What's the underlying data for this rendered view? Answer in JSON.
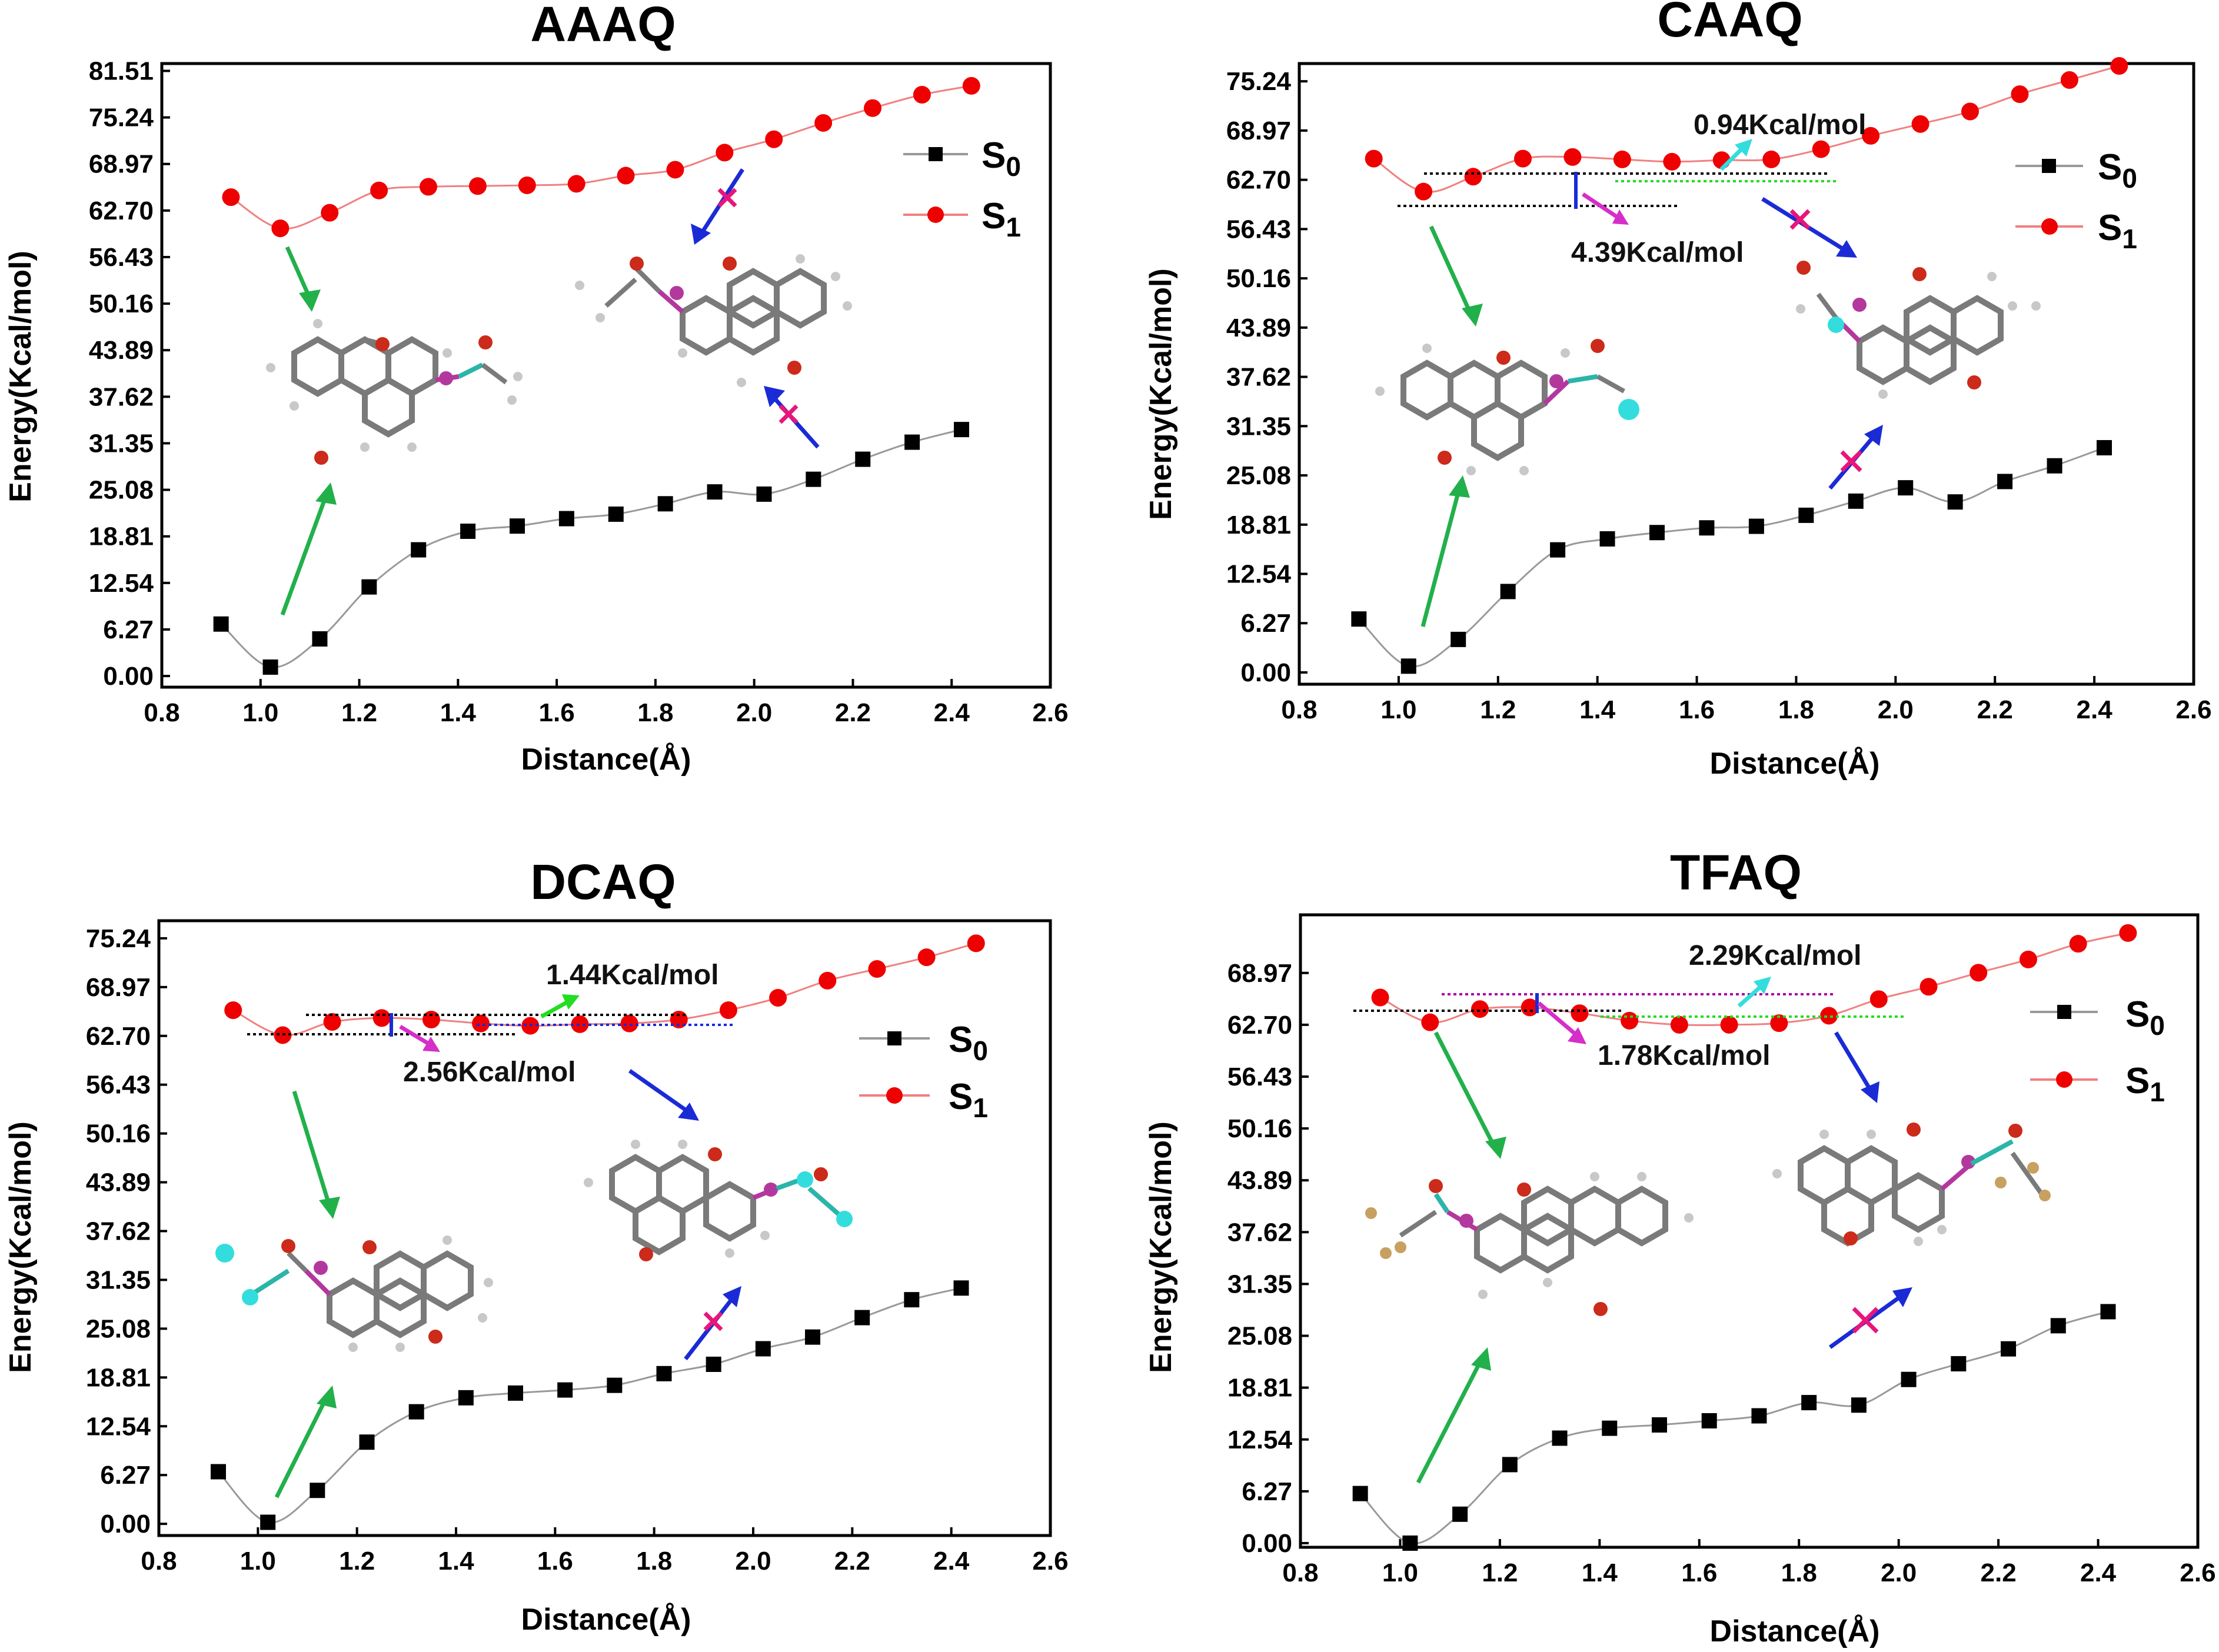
{
  "colors": {
    "s0": "#000000",
    "s1": "#ee0000",
    "s1_line": "#f08080",
    "s0_line": "#999999",
    "green": "#22b04b",
    "blue": "#1a2bd6",
    "magenta": "#d62ec8",
    "cyan": "#33dddd",
    "cross": "#e8157a",
    "atom_c": "#7a7a7a",
    "atom_h": "#c8c8c8",
    "atom_o": "#cc2a1a",
    "atom_s": "#b3389e",
    "atom_n": "#2bb5a8",
    "atom_f": "#c8a060"
  },
  "chart_data": [
    {
      "type": "line",
      "title": "AAAQ",
      "xlabel": "Distance(Å)",
      "ylabel": "Energy(Kcal/mol)",
      "xlim": [
        0.8,
        2.6
      ],
      "ylim": [
        -1.5,
        82.5
      ],
      "xticks": [
        "0.8",
        "1.0",
        "1.2",
        "1.4",
        "1.6",
        "1.8",
        "2.0",
        "2.2",
        "2.4",
        "2.6"
      ],
      "yticks": [
        "0.00",
        "6.27",
        "12.54",
        "18.81",
        "25.08",
        "31.35",
        "37.62",
        "43.89",
        "50.16",
        "56.43",
        "62.70",
        "68.97",
        "75.24",
        "81.51"
      ],
      "legend": [
        "S0",
        "S1"
      ],
      "series": [
        {
          "name": "S0",
          "x": [
            0.92,
            1.02,
            1.12,
            1.22,
            1.32,
            1.42,
            1.52,
            1.62,
            1.72,
            1.82,
            1.92,
            2.02,
            2.12,
            2.22,
            2.32,
            2.42
          ],
          "y": [
            7.0,
            1.2,
            5.0,
            12.0,
            17.0,
            19.5,
            20.2,
            21.2,
            21.8,
            23.2,
            24.8,
            24.5,
            26.5,
            29.2,
            31.5,
            33.2
          ]
        },
        {
          "name": "S1",
          "x": [
            0.94,
            1.04,
            1.14,
            1.24,
            1.34,
            1.44,
            1.54,
            1.64,
            1.74,
            1.84,
            1.94,
            2.04,
            2.14,
            2.24,
            2.34,
            2.44
          ],
          "y": [
            64.5,
            60.3,
            62.4,
            65.4,
            65.9,
            66.0,
            66.1,
            66.3,
            67.4,
            68.2,
            70.5,
            72.3,
            74.5,
            76.5,
            78.3,
            79.5
          ]
        }
      ],
      "annotations": []
    },
    {
      "type": "line",
      "title": "CAAQ",
      "xlabel": "Distance(Å)",
      "ylabel": "Energy(Kcal/mol)",
      "xlim": [
        0.8,
        2.6
      ],
      "ylim": [
        -1.5,
        77.5
      ],
      "xticks": [
        "0.8",
        "1.0",
        "1.2",
        "1.4",
        "1.6",
        "1.8",
        "2.0",
        "2.2",
        "2.4",
        "2.6"
      ],
      "yticks": [
        "0.00",
        "6.27",
        "12.54",
        "18.81",
        "25.08",
        "31.35",
        "37.62",
        "43.89",
        "50.16",
        "56.43",
        "62.70",
        "68.97",
        "75.24"
      ],
      "legend": [
        "S0",
        "S1"
      ],
      "series": [
        {
          "name": "S0",
          "x": [
            0.92,
            1.02,
            1.12,
            1.22,
            1.32,
            1.42,
            1.52,
            1.62,
            1.72,
            1.82,
            1.92,
            2.02,
            2.12,
            2.22,
            2.32,
            2.42
          ],
          "y": [
            6.8,
            0.8,
            4.2,
            10.3,
            15.6,
            17.0,
            17.8,
            18.4,
            18.6,
            20.0,
            21.8,
            23.5,
            21.7,
            24.3,
            26.3,
            28.6
          ]
        },
        {
          "name": "S1",
          "x": [
            0.95,
            1.05,
            1.15,
            1.25,
            1.35,
            1.45,
            1.55,
            1.65,
            1.75,
            1.85,
            1.95,
            2.05,
            2.15,
            2.25,
            2.35,
            2.45
          ],
          "y": [
            65.4,
            61.2,
            63.1,
            65.4,
            65.6,
            65.3,
            65.0,
            65.2,
            65.3,
            66.6,
            68.3,
            69.8,
            71.4,
            73.6,
            75.4,
            77.2
          ]
        }
      ],
      "annotations": [
        "0.94Kcal/mol",
        "4.39Kcal/mol"
      ]
    },
    {
      "type": "line",
      "title": "DCAQ",
      "xlabel": "Distance(Å)",
      "ylabel": "Energy(Kcal/mol)",
      "xlim": [
        0.8,
        2.6
      ],
      "ylim": [
        -1.5,
        77.5
      ],
      "xticks": [
        "0.8",
        "1.0",
        "1.2",
        "1.4",
        "1.6",
        "1.8",
        "2.0",
        "2.2",
        "2.4",
        "2.6"
      ],
      "yticks": [
        "0.00",
        "6.27",
        "12.54",
        "18.81",
        "25.08",
        "31.35",
        "37.62",
        "43.89",
        "50.16",
        "56.43",
        "62.70",
        "68.97",
        "75.24"
      ],
      "legend": [
        "S0",
        "S1"
      ],
      "series": [
        {
          "name": "S0",
          "x": [
            0.92,
            1.02,
            1.12,
            1.22,
            1.32,
            1.42,
            1.52,
            1.62,
            1.72,
            1.82,
            1.92,
            2.02,
            2.12,
            2.22,
            2.32,
            2.42
          ],
          "y": [
            6.7,
            0.2,
            4.3,
            10.5,
            14.4,
            16.2,
            16.8,
            17.2,
            17.8,
            19.3,
            20.5,
            22.5,
            24.0,
            26.5,
            28.8,
            30.3
          ]
        },
        {
          "name": "S1",
          "x": [
            0.95,
            1.05,
            1.15,
            1.25,
            1.35,
            1.45,
            1.55,
            1.65,
            1.75,
            1.85,
            1.95,
            2.05,
            2.15,
            2.25,
            2.35,
            2.45
          ],
          "y": [
            66.0,
            62.8,
            64.5,
            65.0,
            64.8,
            64.3,
            64.0,
            64.2,
            64.3,
            64.8,
            66.0,
            67.6,
            69.8,
            71.3,
            72.8,
            74.6
          ]
        }
      ],
      "annotations": [
        "1.44Kcal/mol",
        "2.56Kcal/mol"
      ]
    },
    {
      "type": "line",
      "title": "TFAQ",
      "xlabel": "Distance(Å)",
      "ylabel": "Energy(Kcal/mol)",
      "xlim": [
        0.8,
        2.6
      ],
      "ylim": [
        -0.5,
        76.0
      ],
      "xticks": [
        "0.8",
        "1.0",
        "1.2",
        "1.4",
        "1.6",
        "1.8",
        "2.0",
        "2.2",
        "2.4",
        "2.6"
      ],
      "yticks": [
        "0.00",
        "6.27",
        "12.54",
        "18.81",
        "25.08",
        "31.35",
        "37.62",
        "43.89",
        "50.16",
        "56.43",
        "62.70",
        "68.97"
      ],
      "legend": [
        "S0",
        "S1"
      ],
      "series": [
        {
          "name": "S0",
          "x": [
            0.92,
            1.02,
            1.12,
            1.22,
            1.32,
            1.42,
            1.52,
            1.62,
            1.72,
            1.82,
            1.92,
            2.02,
            2.12,
            2.22,
            2.32,
            2.42
          ],
          "y": [
            6.0,
            0.0,
            3.5,
            9.5,
            12.7,
            13.9,
            14.3,
            14.8,
            15.4,
            17.0,
            16.7,
            19.8,
            21.7,
            23.5,
            26.3,
            28.0
          ]
        },
        {
          "name": "S1",
          "x": [
            0.96,
            1.06,
            1.16,
            1.26,
            1.36,
            1.46,
            1.56,
            1.66,
            1.76,
            1.86,
            1.96,
            2.06,
            2.16,
            2.26,
            2.36,
            2.46
          ],
          "y": [
            66.0,
            63.0,
            64.6,
            64.8,
            64.1,
            63.2,
            62.7,
            62.7,
            62.9,
            63.8,
            65.8,
            67.3,
            69.0,
            70.6,
            72.5,
            73.8
          ]
        }
      ],
      "annotations": [
        "2.29Kcal/mol",
        "1.78Kcal/mol"
      ]
    }
  ]
}
